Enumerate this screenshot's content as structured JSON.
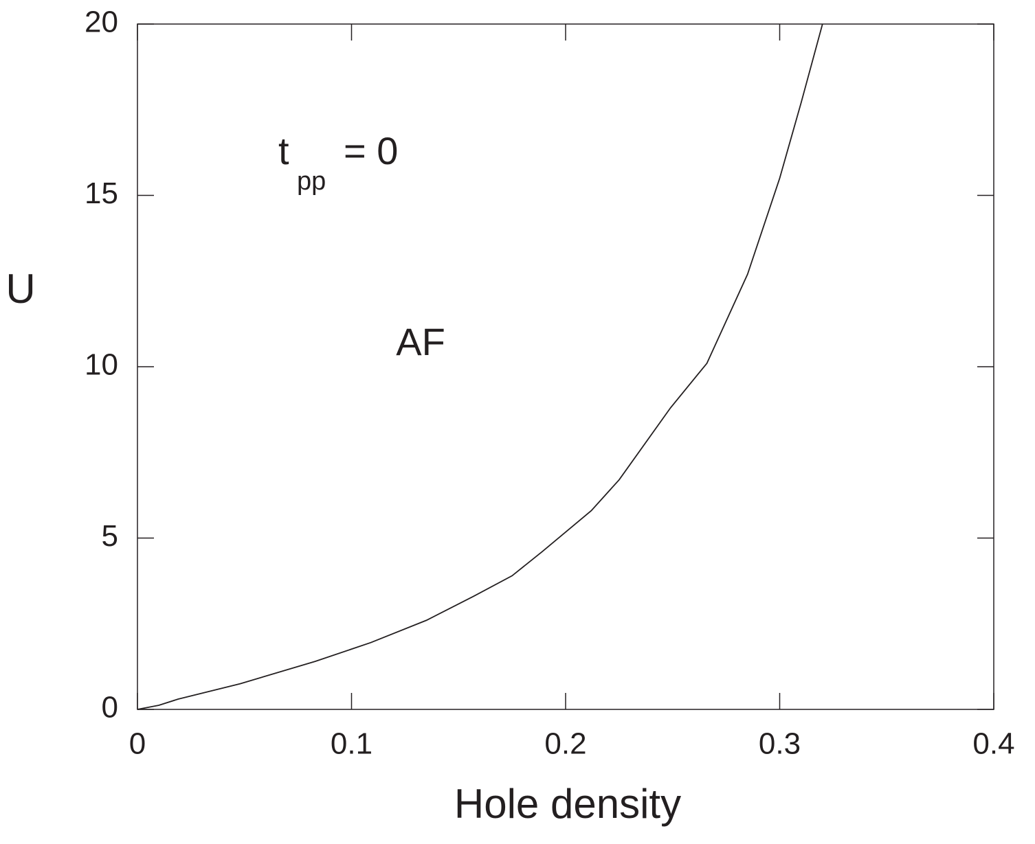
{
  "chart_data": {
    "type": "line",
    "x_label": "Hole density",
    "y_label": "U",
    "annotations": {
      "phase": "AF",
      "param_symbol": "t",
      "param_subscript": "pp",
      "param_value": "= 0"
    },
    "xlim": [
      0,
      0.4
    ],
    "xticks": [
      0,
      0.1,
      0.2,
      0.3,
      0.4
    ],
    "ylim": [
      0,
      20
    ],
    "yticks": [
      0,
      5,
      10,
      15,
      20
    ],
    "grid": false,
    "series": [
      {
        "color": "#231f20",
        "x": [
          0,
          0.01,
          0.019,
          0.048,
          0.083,
          0.109,
          0.135,
          0.157,
          0.175,
          0.189,
          0.212,
          0.225,
          0.249,
          0.266,
          0.285,
          0.3,
          0.31,
          0.32
        ],
        "values": [
          0,
          0.12,
          0.3,
          0.75,
          1.4,
          1.95,
          2.6,
          3.3,
          3.9,
          4.6,
          5.8,
          6.7,
          8.8,
          10.1,
          12.7,
          15.5,
          17.7,
          20
        ]
      }
    ]
  }
}
